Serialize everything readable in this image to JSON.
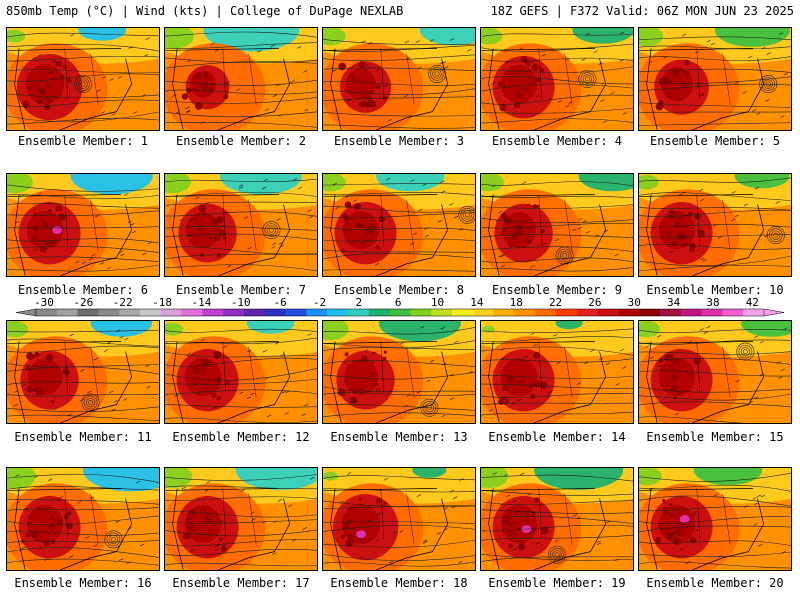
{
  "header": {
    "left": "850mb Temp (°C) | Wind (kts) | College of DuPage NEXLAB",
    "right": "18Z GEFS | F372 Valid: 06Z MON JUN 23 2025"
  },
  "colorbar": {
    "ticks": [
      "-30",
      "-26",
      "-22",
      "-18",
      "-14",
      "-10",
      "-6",
      "-2",
      "2",
      "6",
      "10",
      "14",
      "18",
      "22",
      "26",
      "30",
      "34",
      "38",
      "42"
    ],
    "colors": [
      "#8a8a8a",
      "#a0a0a0",
      "#6e6e6e",
      "#8c8c8c",
      "#a8a8a8",
      "#c8c8c8",
      "#d9a0d9",
      "#e070e0",
      "#c040d0",
      "#9030c0",
      "#6028b0",
      "#3030c0",
      "#2050e0",
      "#1e90ff",
      "#20c0f0",
      "#30d0c0",
      "#20b070",
      "#40c040",
      "#80d020",
      "#c0e020",
      "#f0f020",
      "#ffd020",
      "#ffb000",
      "#ff9000",
      "#ff6a00",
      "#ff3c00",
      "#e82020",
      "#cc1010",
      "#b00000",
      "#8c0000",
      "#a01040",
      "#c01880",
      "#e030b0",
      "#f060d0",
      "#f8a0e8"
    ]
  },
  "map_colors": {
    "hot": [
      "#8c0000",
      "#b00000",
      "#cc1010",
      "#e82020"
    ],
    "warm": [
      "#ff3c00",
      "#ff6a00",
      "#ff9000",
      "#ffb000"
    ],
    "mild": [
      "#ffd020",
      "#f0f020",
      "#c0e020",
      "#80d020"
    ],
    "cool": [
      "#40c040",
      "#20b070",
      "#30d0c0",
      "#20c0f0"
    ],
    "extreme": [
      "#e030b0",
      "#f060d0"
    ],
    "contour": "#222222",
    "border": "#000000"
  },
  "panels": [
    {
      "label": "Ensemble Member: 1",
      "cool": 0.35,
      "hot": 0.9,
      "low": [
        0.5,
        0.55
      ]
    },
    {
      "label": "Ensemble Member: 2",
      "cool": 0.7,
      "hot": 0.6,
      "low": null
    },
    {
      "label": "Ensemble Member: 3",
      "cool": 0.5,
      "hot": 0.7,
      "low": [
        0.75,
        0.45
      ]
    },
    {
      "label": "Ensemble Member: 4",
      "cool": 0.45,
      "hot": 0.85,
      "low": [
        0.7,
        0.5
      ]
    },
    {
      "label": "Ensemble Member: 5",
      "cool": 0.55,
      "hot": 0.75,
      "low": [
        0.85,
        0.55
      ]
    },
    {
      "label": "Ensemble Member: 6",
      "cool": 0.6,
      "hot": 0.85,
      "low": null,
      "extreme": [
        0.33,
        0.55
      ]
    },
    {
      "label": "Ensemble Member: 7",
      "cool": 0.6,
      "hot": 0.8,
      "low": [
        0.7,
        0.55
      ]
    },
    {
      "label": "Ensemble Member: 8",
      "cool": 0.5,
      "hot": 0.85,
      "low": [
        0.95,
        0.4
      ]
    },
    {
      "label": "Ensemble Member: 9",
      "cool": 0.5,
      "hot": 0.8,
      "low": [
        0.55,
        0.8
      ]
    },
    {
      "label": "Ensemble Member: 10",
      "cool": 0.4,
      "hot": 0.85,
      "low": [
        0.9,
        0.6
      ]
    },
    {
      "label": "Ensemble Member: 11",
      "cool": 0.45,
      "hot": 0.8,
      "low": [
        0.55,
        0.8
      ]
    },
    {
      "label": "Ensemble Member: 12",
      "cool": 0.35,
      "hot": 0.85,
      "low": null
    },
    {
      "label": "Ensemble Member: 13",
      "cool": 0.6,
      "hot": 0.8,
      "low": [
        0.7,
        0.85
      ]
    },
    {
      "label": "Ensemble Member: 14",
      "cool": 0.2,
      "hot": 0.85,
      "low": null
    },
    {
      "label": "Ensemble Member: 15",
      "cool": 0.45,
      "hot": 0.85,
      "low": [
        0.7,
        0.3
      ]
    },
    {
      "label": "Ensemble Member: 16",
      "cool": 0.7,
      "hot": 0.85,
      "low": [
        0.7,
        0.7
      ]
    },
    {
      "label": "Ensemble Member: 17",
      "cool": 0.65,
      "hot": 0.85,
      "low": null
    },
    {
      "label": "Ensemble Member: 18",
      "cool": 0.25,
      "hot": 0.9,
      "low": null,
      "extreme": [
        0.25,
        0.65
      ]
    },
    {
      "label": "Ensemble Member: 19",
      "cool": 0.65,
      "hot": 0.85,
      "low": [
        0.5,
        0.85
      ],
      "extreme": [
        0.3,
        0.6
      ]
    },
    {
      "label": "Ensemble Member: 20",
      "cool": 0.5,
      "hot": 0.85,
      "low": null,
      "extreme": [
        0.3,
        0.5
      ]
    }
  ]
}
